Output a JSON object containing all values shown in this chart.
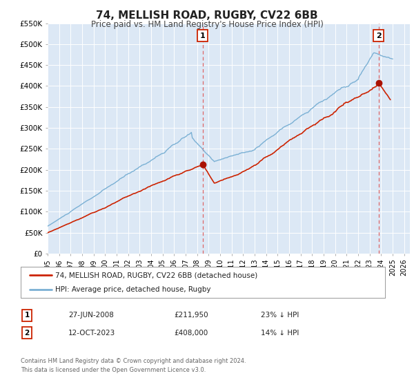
{
  "title": "74, MELLISH ROAD, RUGBY, CV22 6BB",
  "subtitle": "Price paid vs. HM Land Registry's House Price Index (HPI)",
  "title_fontsize": 11,
  "subtitle_fontsize": 8.5,
  "background_color": "#ffffff",
  "plot_background_color": "#dce8f5",
  "grid_color": "#ffffff",
  "ylim": [
    0,
    550000
  ],
  "xlim_start": 1995.0,
  "xlim_end": 2026.5,
  "yticks": [
    0,
    50000,
    100000,
    150000,
    200000,
    250000,
    300000,
    350000,
    400000,
    450000,
    500000,
    550000
  ],
  "ytick_labels": [
    "£0",
    "£50K",
    "£100K",
    "£150K",
    "£200K",
    "£250K",
    "£300K",
    "£350K",
    "£400K",
    "£450K",
    "£500K",
    "£550K"
  ],
  "xticks": [
    1995,
    1996,
    1997,
    1998,
    1999,
    2000,
    2001,
    2002,
    2003,
    2004,
    2005,
    2006,
    2007,
    2008,
    2009,
    2010,
    2011,
    2012,
    2013,
    2014,
    2015,
    2016,
    2017,
    2018,
    2019,
    2020,
    2021,
    2022,
    2023,
    2024,
    2025,
    2026
  ],
  "hpi_color": "#7ab0d4",
  "property_color": "#cc2200",
  "marker_color": "#aa1100",
  "vline_color": "#dd6666",
  "annotation_box_edgecolor": "#cc2200",
  "sale1_date": 2008.49,
  "sale1_price": 211950,
  "sale1_label": "1",
  "sale2_date": 2023.79,
  "sale2_price": 408000,
  "sale2_label": "2",
  "footer_line1": "Contains HM Land Registry data © Crown copyright and database right 2024.",
  "footer_line2": "This data is licensed under the Open Government Licence v3.0.",
  "legend_line1": "74, MELLISH ROAD, RUGBY, CV22 6BB (detached house)",
  "legend_line2": "HPI: Average price, detached house, Rugby",
  "table_row1_num": "1",
  "table_row1_date": "27-JUN-2008",
  "table_row1_price": "£211,950",
  "table_row1_hpi": "23% ↓ HPI",
  "table_row2_num": "2",
  "table_row2_date": "12-OCT-2023",
  "table_row2_price": "£408,000",
  "table_row2_hpi": "14% ↓ HPI"
}
